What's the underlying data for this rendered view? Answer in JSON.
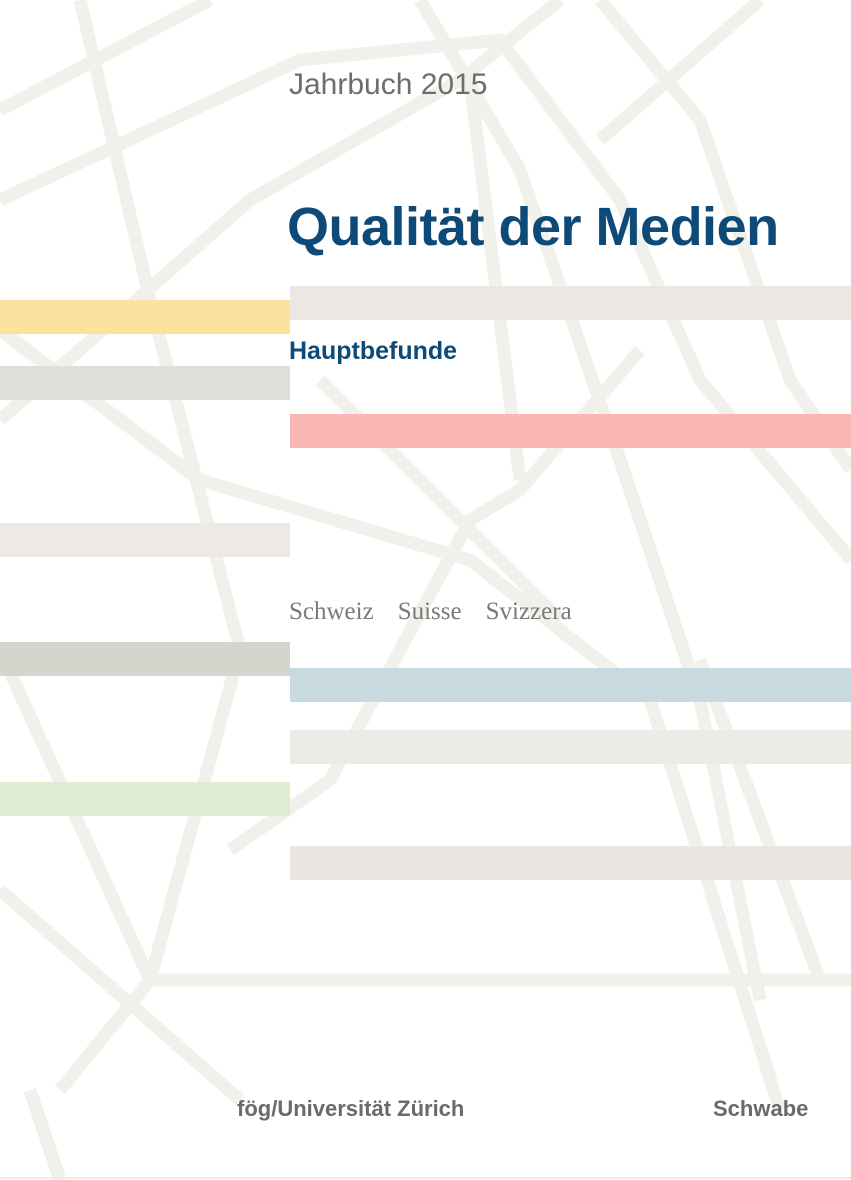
{
  "cover": {
    "yearbook_label": "Jahrbuch 2015",
    "title": "Qualität der Medien",
    "subtitle": "Hauptbefunde",
    "countries": [
      "Schweiz",
      "Suisse",
      "Svizzera"
    ],
    "institution": "fög/Universität Zürich",
    "publisher": "Schwabe"
  },
  "colors": {
    "title_blue": "#0d4a78",
    "bar_yellow": "#fde19f",
    "bar_red": "#f9b6b4",
    "bar_blue": "#c8d9df",
    "bar_green": "#ddedd2",
    "bar_gray": "#d4d5cc",
    "bar_beige": "#ece8e4",
    "line_gray": "#f1f1ec"
  }
}
